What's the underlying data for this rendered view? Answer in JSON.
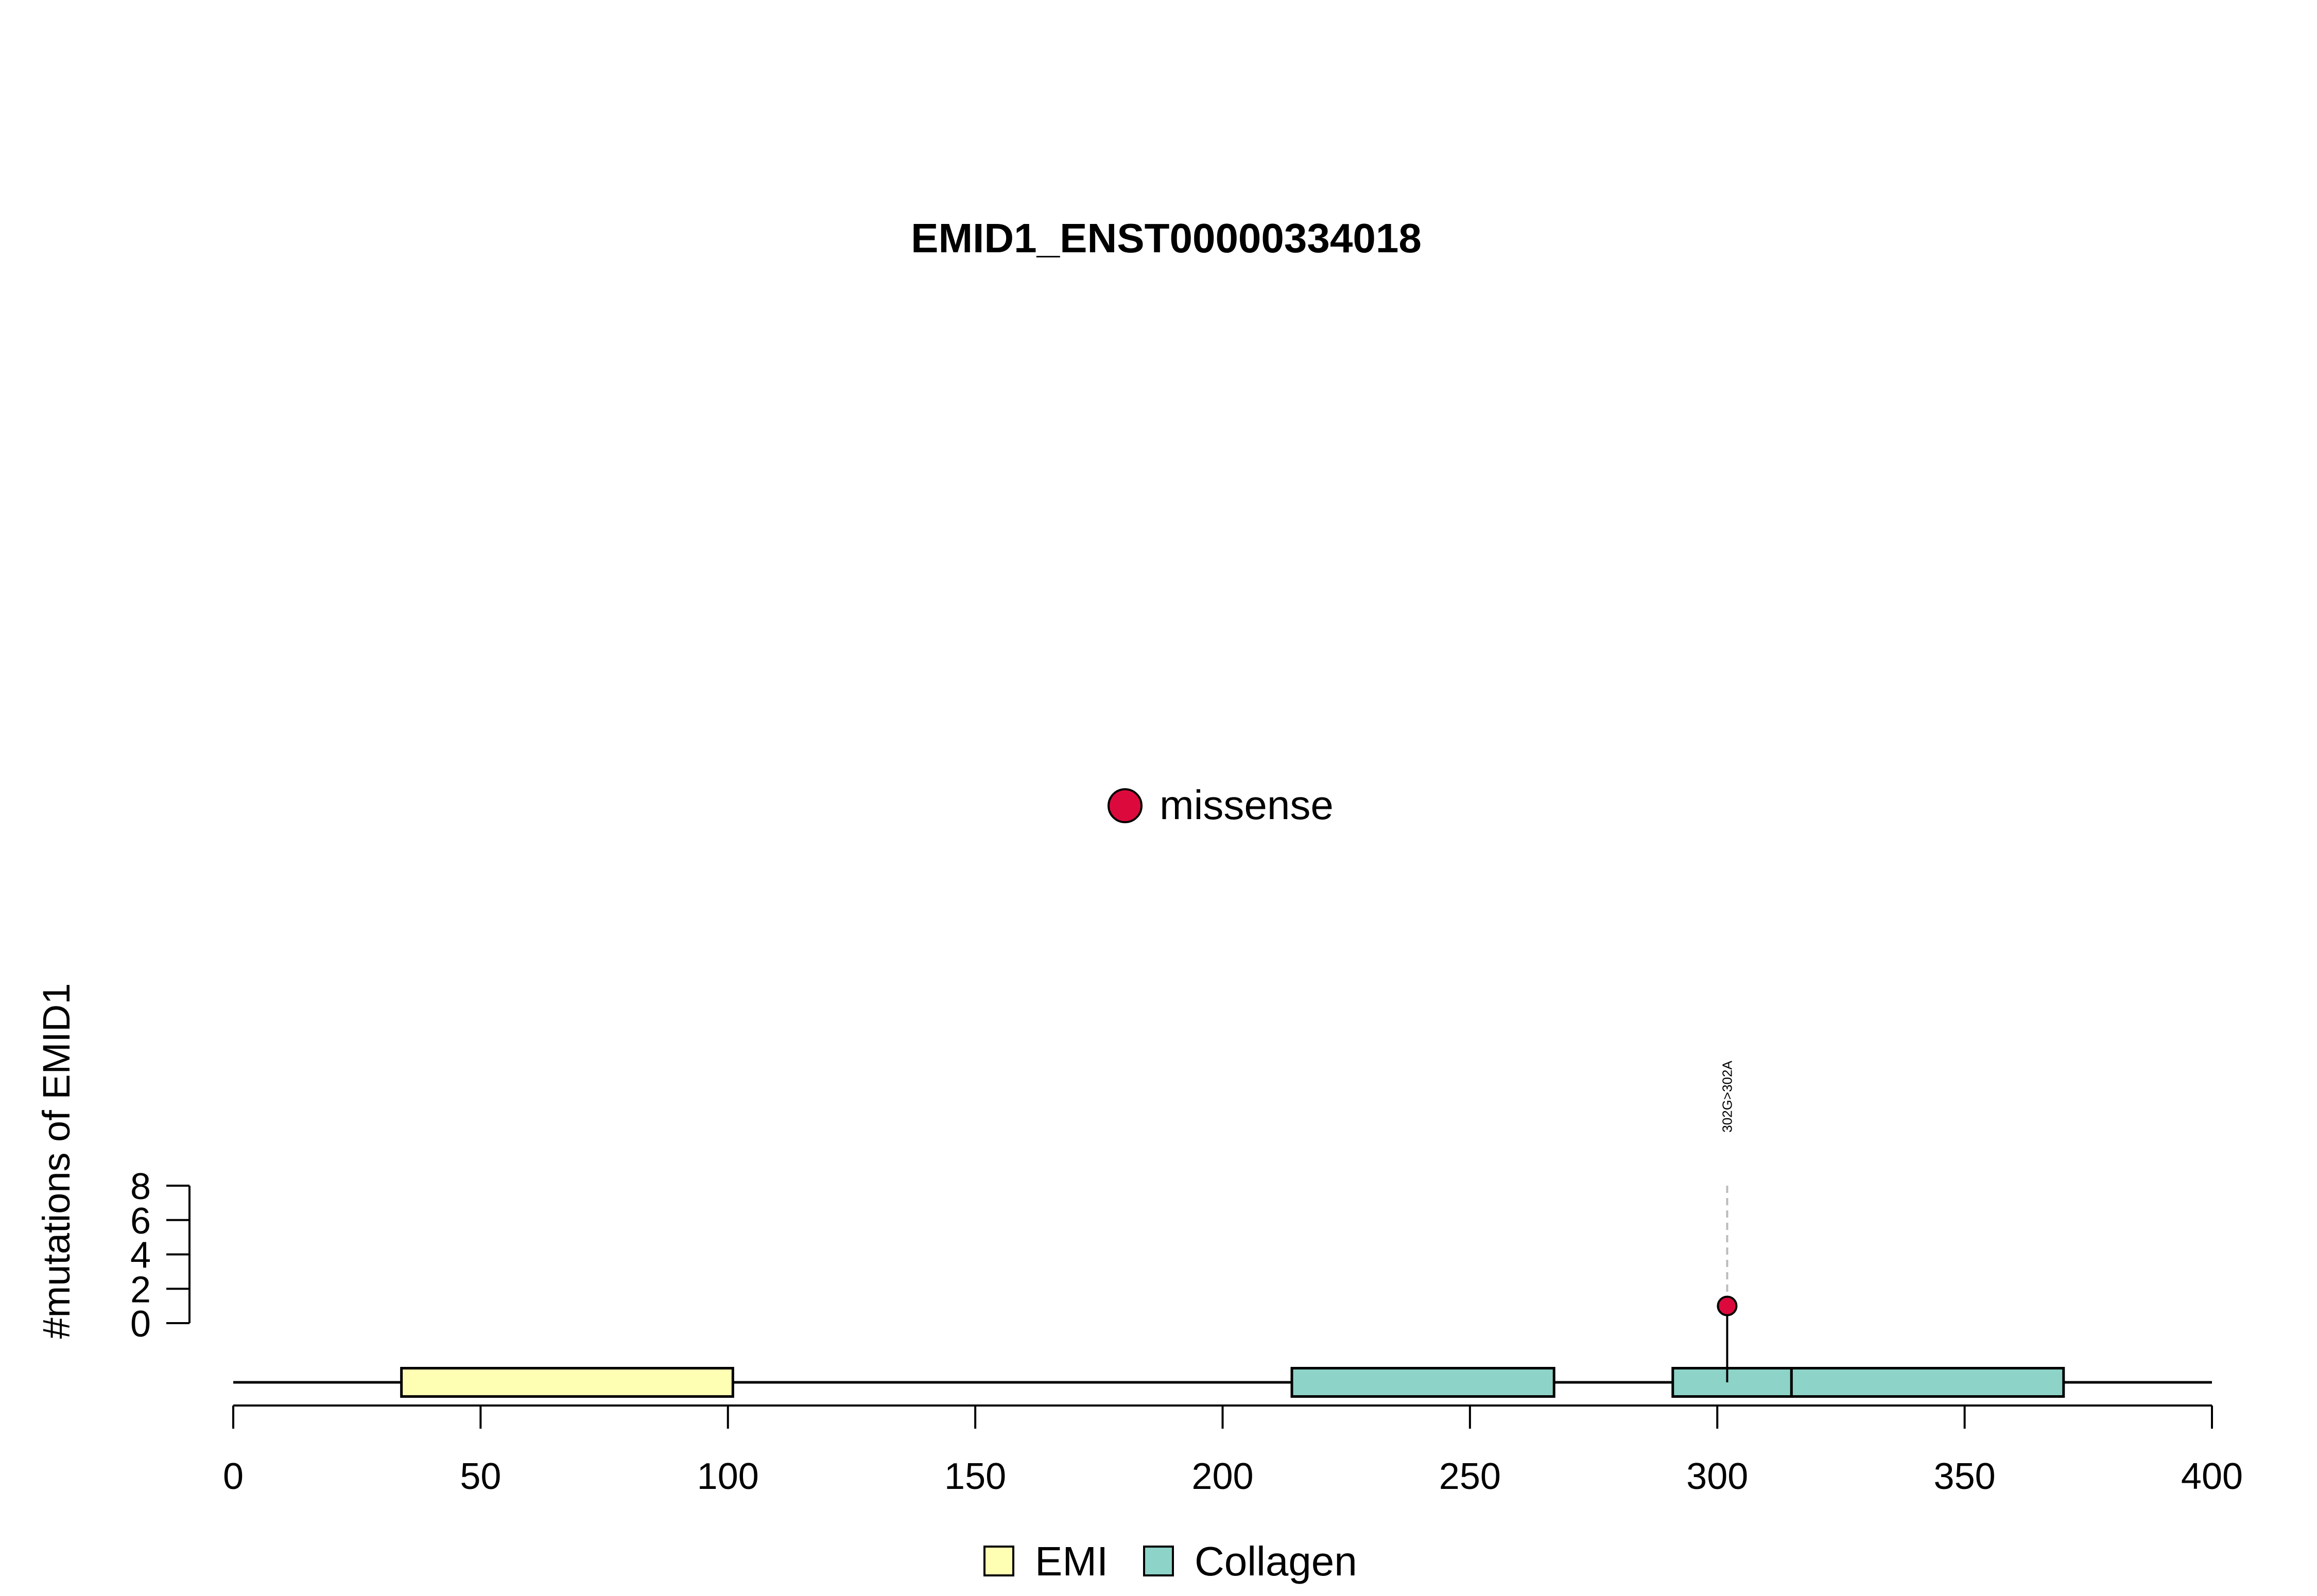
{
  "chart_data": {
    "type": "lollipop",
    "title": "EMID1_ENST00000334018",
    "xlabel": "",
    "ylabel": "#mutations of EMID1",
    "xlim": [
      0,
      400
    ],
    "x_ticks": [
      0,
      50,
      100,
      150,
      200,
      250,
      300,
      350,
      400
    ],
    "y_range": [
      0,
      8
    ],
    "y_ticks": [
      0,
      2,
      4,
      6,
      8
    ],
    "protein_length": 400,
    "domains": [
      {
        "name": "EMI",
        "start": 34,
        "end": 101,
        "color": "#FFFFB3"
      },
      {
        "name": "Collagen",
        "start": 214,
        "end": 267,
        "color": "#8DD3C7"
      },
      {
        "name": "Collagen",
        "start": 291,
        "end": 315,
        "color": "#8DD3C7"
      },
      {
        "name": "Collagen",
        "start": 315,
        "end": 370,
        "color": "#8DD3C7"
      }
    ],
    "mutations": [
      {
        "position": 302,
        "count": 1,
        "type": "missense",
        "label": "302G>302A"
      }
    ],
    "mutation_types": [
      {
        "name": "missense",
        "color": "#DC0A3C"
      }
    ],
    "legend": {
      "domains": [
        {
          "name": "EMI",
          "color": "#FFFFB3"
        },
        {
          "name": "Collagen",
          "color": "#8DD3C7"
        }
      ],
      "placement": "bottom-center"
    },
    "grid": false
  }
}
